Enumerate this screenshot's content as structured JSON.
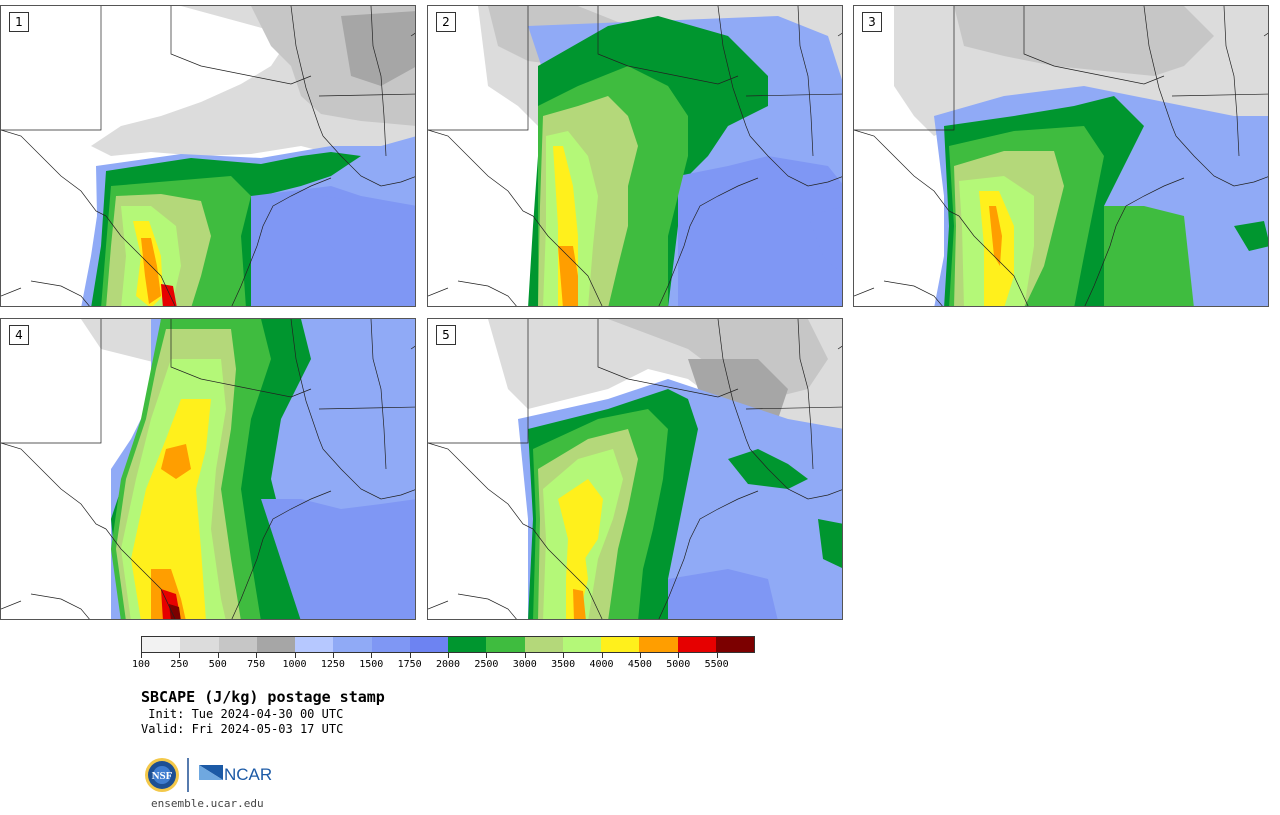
{
  "panels": [
    {
      "id": "1",
      "variant": 1
    },
    {
      "id": "2",
      "variant": 2
    },
    {
      "id": "3",
      "variant": 3
    },
    {
      "id": "4",
      "variant": 4
    },
    {
      "id": "5",
      "variant": 5
    }
  ],
  "colorbar": {
    "colors": [
      "#f2f2f2",
      "#dcdcdc",
      "#c6c6c6",
      "#a6a6a6",
      "#b6c8ff",
      "#90aaf6",
      "#7f97f4",
      "#6d83f2",
      "#00962f",
      "#3fbc3f",
      "#b4d87a",
      "#b4f878",
      "#fff01c",
      "#ff9e00",
      "#e60000",
      "#7c0000"
    ],
    "tick_labels": [
      "100",
      "250",
      "500",
      "750",
      "1000",
      "1250",
      "1500",
      "1750",
      "2000",
      "2500",
      "3000",
      "3500",
      "4000",
      "4500",
      "5000",
      "5500"
    ]
  },
  "title": "SBCAPE (J/kg) postage stamp",
  "init_line": " Init: Tue 2024-04-30 00 UTC",
  "valid_line": "Valid: Fri 2024-05-03 17 UTC",
  "logo_nsf_text": "NSF",
  "logo_ncar_text": "NCAR",
  "site_url": "ensemble.ucar.edu"
}
